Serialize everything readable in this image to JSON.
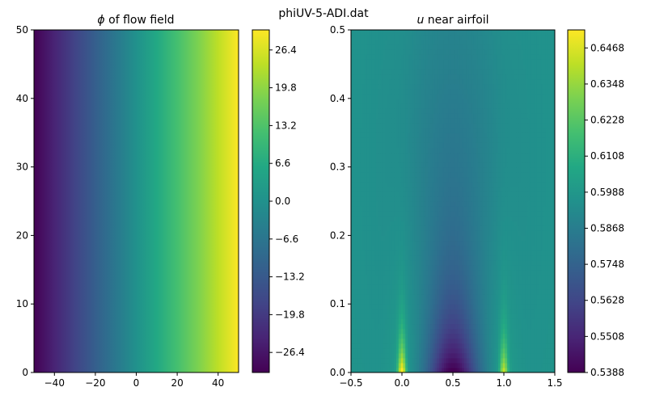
{
  "figure_title": "phiUV-5-ADI.dat",
  "colormap": [
    "#440154",
    "#482475",
    "#414487",
    "#355f8d",
    "#2a788e",
    "#21918c",
    "#22a884",
    "#44bf70",
    "#7ad151",
    "#bddf26",
    "#fde725"
  ],
  "chart_data": [
    {
      "type": "heatmap",
      "title_symbol": "ϕ",
      "title_text": " of flow field",
      "xlim": [
        -50,
        50
      ],
      "ylim": [
        0,
        50
      ],
      "xticks": [
        -40,
        -20,
        0,
        20,
        40
      ],
      "yticks": [
        0,
        10,
        20,
        30,
        40,
        50
      ],
      "xtick_labels": [
        "−40",
        "−20",
        "0",
        "20",
        "40"
      ],
      "ytick_labels": [
        "0",
        "10",
        "20",
        "30",
        "40",
        "50"
      ],
      "field": "linear in x, constant in y",
      "value_range": [
        -30,
        30
      ],
      "colorbar": {
        "ticks": [
          -26.4,
          -19.8,
          -13.2,
          -6.6,
          0.0,
          6.6,
          13.2,
          19.8,
          26.4
        ],
        "labels": [
          "−26.4",
          "−19.8",
          "−13.2",
          "−6.6",
          "0.0",
          "6.6",
          "13.2",
          "19.8",
          "26.4"
        ],
        "range": [
          -29.9,
          29.9
        ]
      }
    },
    {
      "type": "heatmap",
      "title_symbol": "u",
      "title_text": " near airfoil",
      "xlim": [
        -0.5,
        1.5
      ],
      "ylim": [
        0.0,
        0.5
      ],
      "xticks": [
        -0.5,
        0.0,
        0.5,
        1.0,
        1.5
      ],
      "yticks": [
        0.0,
        0.1,
        0.2,
        0.3,
        0.4,
        0.5
      ],
      "xtick_labels": [
        "−0.5",
        "0.0",
        "0.5",
        "1.0",
        "1.5"
      ],
      "ytick_labels": [
        "0.0",
        "0.1",
        "0.2",
        "0.3",
        "0.4",
        "0.5"
      ],
      "value_range": [
        0.5388,
        0.6528
      ],
      "colorbar": {
        "ticks": [
          0.5388,
          0.5508,
          0.5628,
          0.5748,
          0.5868,
          0.5988,
          0.6108,
          0.6228,
          0.6348,
          0.6468
        ],
        "labels": [
          "0.5388",
          "0.5508",
          "0.5628",
          "0.5748",
          "0.5868",
          "0.5988",
          "0.6108",
          "0.6228",
          "0.6348",
          "0.6468"
        ],
        "range": [
          0.5388,
          0.6528
        ]
      }
    }
  ]
}
